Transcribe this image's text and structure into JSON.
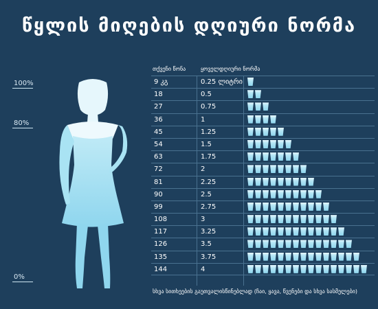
{
  "title": "წყლის მიღების დღიური ნორმა",
  "percent_labels": [
    "100%",
    "80%",
    "0%"
  ],
  "headers": {
    "weight": "თქვენი წონა",
    "norm": "ყოველდღიური ნორმა"
  },
  "rows": [
    {
      "weight": "9 კგ",
      "liters": "0.25 ლიტრი",
      "glasses": 1
    },
    {
      "weight": "18",
      "liters": "0.5",
      "glasses": 2
    },
    {
      "weight": "27",
      "liters": "0.75",
      "glasses": 3
    },
    {
      "weight": "36",
      "liters": "1",
      "glasses": 4
    },
    {
      "weight": "45",
      "liters": "1.25",
      "glasses": 5
    },
    {
      "weight": "54",
      "liters": "1.5",
      "glasses": 6
    },
    {
      "weight": "63",
      "liters": "1.75",
      "glasses": 7
    },
    {
      "weight": "72",
      "liters": "2",
      "glasses": 8
    },
    {
      "weight": "81",
      "liters": "2.25",
      "glasses": 9
    },
    {
      "weight": "90",
      "liters": "2.5",
      "glasses": 10
    },
    {
      "weight": "99",
      "liters": "2.75",
      "glasses": 11
    },
    {
      "weight": "108",
      "liters": "3",
      "glasses": 12
    },
    {
      "weight": "117",
      "liters": "3.25",
      "glasses": 13
    },
    {
      "weight": "126",
      "liters": "3.5",
      "glasses": 14
    },
    {
      "weight": "135",
      "liters": "3.75",
      "glasses": 15
    },
    {
      "weight": "144",
      "liters": "4",
      "glasses": 16
    }
  ],
  "footer": "სხვა სითხეების გაუთვალისწინებლად (ჩაი, ყავა, წვენები და სხვა სასმელები)",
  "colors": {
    "background": "#1e3f5c",
    "water": "#8fd6ee",
    "figure": "#a9e3f3"
  }
}
